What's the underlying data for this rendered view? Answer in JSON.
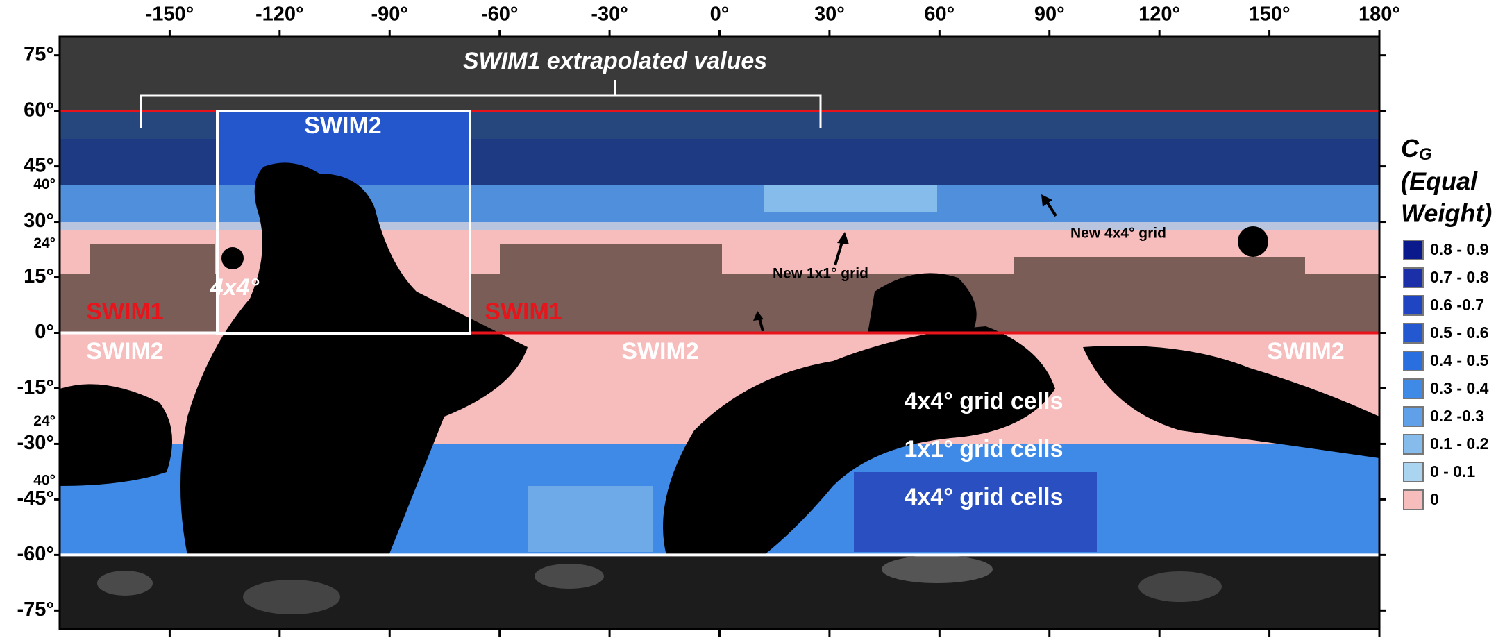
{
  "map": {
    "xlim": [
      -180,
      180
    ],
    "ylim": [
      -80,
      80
    ],
    "xticks": [
      {
        "value": -150,
        "label": "-150°"
      },
      {
        "value": -120,
        "label": "-120°"
      },
      {
        "value": -90,
        "label": "-90°"
      },
      {
        "value": -60,
        "label": "-60°"
      },
      {
        "value": -30,
        "label": "-30°"
      },
      {
        "value": 0,
        "label": "0°"
      },
      {
        "value": 30,
        "label": "30°"
      },
      {
        "value": 60,
        "label": "60°"
      },
      {
        "value": 90,
        "label": "90°"
      },
      {
        "value": 120,
        "label": "120°"
      },
      {
        "value": 150,
        "label": "150°"
      },
      {
        "value": 180,
        "label": "180°"
      }
    ],
    "yticks": [
      {
        "value": 75,
        "label": "75°"
      },
      {
        "value": 60,
        "label": "60°"
      },
      {
        "value": 45,
        "label": "45°"
      },
      {
        "value": 30,
        "label": "30°"
      },
      {
        "value": 15,
        "label": "15°"
      },
      {
        "value": 0,
        "label": "0°"
      },
      {
        "value": -15,
        "label": "-15°"
      },
      {
        "value": -30,
        "label": "-30°"
      },
      {
        "value": -45,
        "label": "-45°"
      },
      {
        "value": -60,
        "label": "-60°"
      },
      {
        "value": -75,
        "label": "-75°"
      }
    ],
    "inner_yticks": [
      {
        "value": 40,
        "label": "40°"
      },
      {
        "value": 24,
        "label": "24°"
      },
      {
        "value": -24,
        "label": "24°"
      },
      {
        "value": -40,
        "label": "40°"
      }
    ],
    "annotations": {
      "extrapolated": "SWIM1 extrapolated values",
      "swim2_box": "SWIM2",
      "box_4x4": "4x4°",
      "swim1_west": "SWIM1",
      "swim1_east": "SWIM1",
      "swim2_west": "SWIM2",
      "swim2_center": "SWIM2",
      "swim2_east": "SWIM2",
      "new_1x1": "New 1x1° grid",
      "new_4x4": "New 4x4° grid",
      "cells_4x4_north": "4x4° grid cells",
      "cells_1x1": "1x1° grid cells",
      "cells_4x4_south": "4x4° grid cells"
    },
    "legend": {
      "title": "C",
      "title_sub": "G",
      "title_lines": [
        "(Equal",
        "Weight)"
      ],
      "items": [
        {
          "label": "0.8 - 0.9",
          "color": "#0a1a8c"
        },
        {
          "label": "0.7 - 0.8",
          "color": "#1a2fa8"
        },
        {
          "label": "0.6 -0.7",
          "color": "#1f45c2"
        },
        {
          "label": "0.5 - 0.6",
          "color": "#2458d0"
        },
        {
          "label": "0.4 - 0.5",
          "color": "#2a6fe0"
        },
        {
          "label": "0.3 - 0.4",
          "color": "#3f8ae6"
        },
        {
          "label": "0.2 -0.3",
          "color": "#5fa0e8"
        },
        {
          "label": "0.1 - 0.2",
          "color": "#86bcec"
        },
        {
          "label": "0 - 0.1",
          "color": "#aad4f0"
        },
        {
          "label": "0",
          "color": "#f7bcbc"
        }
      ]
    }
  }
}
